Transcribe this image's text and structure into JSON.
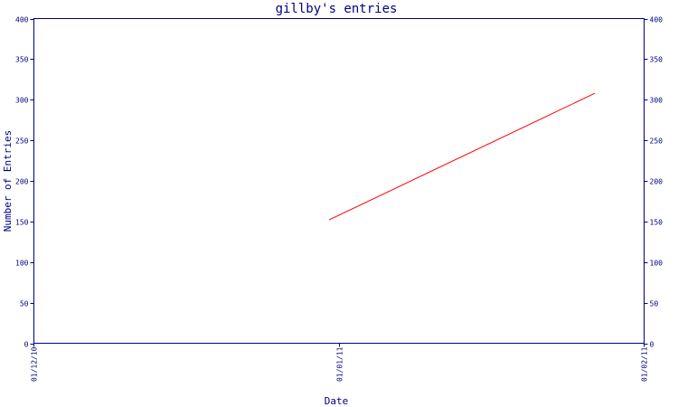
{
  "chart_data": {
    "type": "line",
    "title": "gillby's entries",
    "xlabel": "Date",
    "ylabel": "Number of Entries",
    "x_ticks": [
      "01/12/10",
      "01/01/11",
      "01/02/11"
    ],
    "y_ticks": [
      "0",
      "50",
      "100",
      "150",
      "200",
      "250",
      "300",
      "350",
      "400"
    ],
    "ylim": [
      0,
      400
    ],
    "xlim": [
      "2010-12-01",
      "2011-02-01"
    ],
    "grid": false,
    "series": [
      {
        "color": "#ff0000",
        "points": [
          {
            "x": "2010-12-31",
            "y": 152
          },
          {
            "x": "2011-01-27",
            "y": 308
          }
        ]
      }
    ],
    "colors": {
      "axis": "#000080",
      "text": "#000080",
      "line": "#ff0000",
      "background": "#ffffff"
    }
  }
}
